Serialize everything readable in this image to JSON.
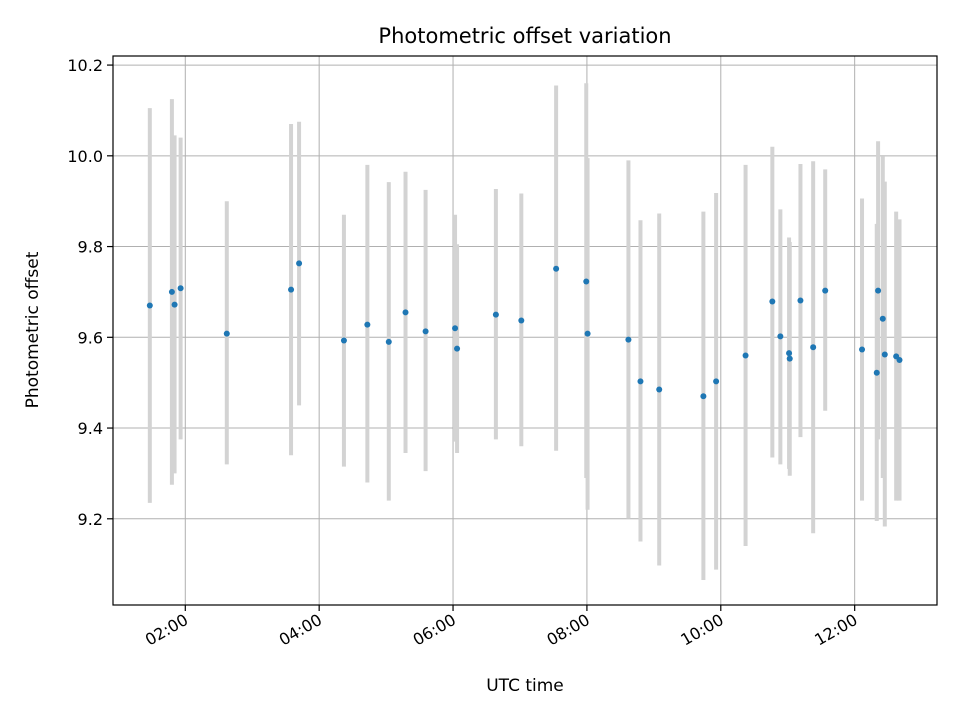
{
  "chart_data": {
    "type": "scatter",
    "title": "Photometric offset variation",
    "xlabel": "UTC time",
    "ylabel": "Photometric offset",
    "x_unit": "hours UTC",
    "xlim": [
      0.92,
      13.23
    ],
    "ylim": [
      9.01,
      10.22
    ],
    "x_ticks": [
      {
        "value": 2,
        "label": "02:00"
      },
      {
        "value": 4,
        "label": "04:00"
      },
      {
        "value": 6,
        "label": "06:00"
      },
      {
        "value": 8,
        "label": "08:00"
      },
      {
        "value": 10,
        "label": "10:00"
      },
      {
        "value": 12,
        "label": "12:00"
      }
    ],
    "y_ticks": [
      {
        "value": 9.2,
        "label": "9.2"
      },
      {
        "value": 9.4,
        "label": "9.4"
      },
      {
        "value": 9.6,
        "label": "9.6"
      },
      {
        "value": 9.8,
        "label": "9.8"
      },
      {
        "value": 10.0,
        "label": "10.0"
      },
      {
        "value": 10.2,
        "label": "10.2"
      }
    ],
    "grid": true,
    "marker_color": "#1f77b4",
    "errorbar_color": "#d3d3d3",
    "points": [
      {
        "x": 1.47,
        "y": 9.67,
        "lo": 9.235,
        "hi": 10.105
      },
      {
        "x": 1.8,
        "y": 9.7,
        "lo": 9.275,
        "hi": 10.125
      },
      {
        "x": 1.84,
        "y": 9.672,
        "lo": 9.3,
        "hi": 10.045
      },
      {
        "x": 1.93,
        "y": 9.708,
        "lo": 9.375,
        "hi": 10.04
      },
      {
        "x": 2.62,
        "y": 9.608,
        "lo": 9.32,
        "hi": 9.9
      },
      {
        "x": 3.58,
        "y": 9.705,
        "lo": 9.34,
        "hi": 10.07
      },
      {
        "x": 3.7,
        "y": 9.763,
        "lo": 9.45,
        "hi": 10.075
      },
      {
        "x": 4.37,
        "y": 9.593,
        "lo": 9.315,
        "hi": 9.87
      },
      {
        "x": 4.72,
        "y": 9.628,
        "lo": 9.28,
        "hi": 9.98
      },
      {
        "x": 5.04,
        "y": 9.59,
        "lo": 9.24,
        "hi": 9.942
      },
      {
        "x": 5.29,
        "y": 9.655,
        "lo": 9.345,
        "hi": 9.965
      },
      {
        "x": 5.59,
        "y": 9.613,
        "lo": 9.305,
        "hi": 9.925
      },
      {
        "x": 6.03,
        "y": 9.62,
        "lo": 9.37,
        "hi": 9.87
      },
      {
        "x": 6.06,
        "y": 9.575,
        "lo": 9.345,
        "hi": 9.805
      },
      {
        "x": 6.64,
        "y": 9.65,
        "lo": 9.375,
        "hi": 9.927
      },
      {
        "x": 7.02,
        "y": 9.637,
        "lo": 9.36,
        "hi": 9.917
      },
      {
        "x": 7.54,
        "y": 9.751,
        "lo": 9.35,
        "hi": 10.155
      },
      {
        "x": 7.99,
        "y": 9.723,
        "lo": 9.29,
        "hi": 10.16
      },
      {
        "x": 8.01,
        "y": 9.608,
        "lo": 9.22,
        "hi": 9.995
      },
      {
        "x": 8.62,
        "y": 9.595,
        "lo": 9.2,
        "hi": 9.99
      },
      {
        "x": 8.8,
        "y": 9.503,
        "lo": 9.15,
        "hi": 9.858
      },
      {
        "x": 9.08,
        "y": 9.485,
        "lo": 9.097,
        "hi": 9.873
      },
      {
        "x": 9.74,
        "y": 9.47,
        "lo": 9.065,
        "hi": 9.877
      },
      {
        "x": 9.93,
        "y": 9.503,
        "lo": 9.088,
        "hi": 9.918
      },
      {
        "x": 10.37,
        "y": 9.56,
        "lo": 9.14,
        "hi": 9.98
      },
      {
        "x": 10.77,
        "y": 9.679,
        "lo": 9.335,
        "hi": 10.02
      },
      {
        "x": 10.89,
        "y": 9.602,
        "lo": 9.32,
        "hi": 9.882
      },
      {
        "x": 11.02,
        "y": 9.565,
        "lo": 9.31,
        "hi": 9.82
      },
      {
        "x": 11.03,
        "y": 9.553,
        "lo": 9.295,
        "hi": 9.81
      },
      {
        "x": 11.19,
        "y": 9.681,
        "lo": 9.38,
        "hi": 9.982
      },
      {
        "x": 11.38,
        "y": 9.578,
        "lo": 9.168,
        "hi": 9.988
      },
      {
        "x": 11.56,
        "y": 9.703,
        "lo": 9.438,
        "hi": 9.97
      },
      {
        "x": 12.11,
        "y": 9.573,
        "lo": 9.24,
        "hi": 9.906
      },
      {
        "x": 12.33,
        "y": 9.522,
        "lo": 9.195,
        "hi": 9.85
      },
      {
        "x": 12.35,
        "y": 9.703,
        "lo": 9.375,
        "hi": 10.032
      },
      {
        "x": 12.42,
        "y": 9.641,
        "lo": 9.29,
        "hi": 9.999
      },
      {
        "x": 12.45,
        "y": 9.562,
        "lo": 9.183,
        "hi": 9.943
      },
      {
        "x": 12.62,
        "y": 9.558,
        "lo": 9.24,
        "hi": 9.877
      },
      {
        "x": 12.67,
        "y": 9.55,
        "lo": 9.24,
        "hi": 9.86
      }
    ]
  }
}
